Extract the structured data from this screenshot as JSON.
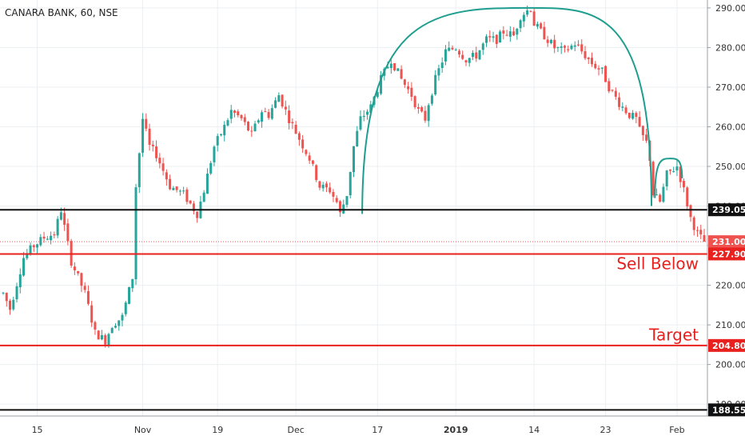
{
  "chart_data": {
    "type": "candlestick",
    "title": "CANARA BANK, 60, NSE",
    "y_axis": {
      "position": "right",
      "ylim": [
        187,
        292
      ],
      "ticks": [
        "190.00",
        "200.00",
        "210.00",
        "220.00",
        "230.00",
        "240.00",
        "250.00",
        "260.00",
        "270.00",
        "280.00",
        "290.00"
      ]
    },
    "x_axis": {
      "ticks": [
        "15",
        "Nov",
        "19",
        "Dec",
        "17",
        "2019",
        "14",
        "23",
        "Feb"
      ],
      "bold_ticks": [
        "2019"
      ]
    },
    "grid": true,
    "colors": {
      "up": "#26a69a",
      "down": "#ef5350",
      "level": "#e8201e",
      "arc": "#1e9e8e"
    },
    "price_path": [
      [
        0,
        218
      ],
      [
        2,
        214
      ],
      [
        6,
        227
      ],
      [
        9,
        230
      ],
      [
        12,
        232
      ],
      [
        15,
        233
      ],
      [
        17,
        239
      ],
      [
        20,
        226
      ],
      [
        24,
        218
      ],
      [
        27,
        208
      ],
      [
        30,
        206
      ],
      [
        32,
        210
      ],
      [
        35,
        212
      ],
      [
        38,
        222
      ],
      [
        39,
        245
      ],
      [
        41,
        262
      ],
      [
        43,
        255
      ],
      [
        45,
        253
      ],
      [
        49,
        245
      ],
      [
        53,
        243
      ],
      [
        57,
        238
      ],
      [
        59,
        244
      ],
      [
        62,
        255
      ],
      [
        65,
        260
      ],
      [
        67,
        264
      ],
      [
        70,
        262
      ],
      [
        73,
        258
      ],
      [
        76,
        264
      ],
      [
        78,
        263
      ],
      [
        81,
        268
      ],
      [
        84,
        262
      ],
      [
        87,
        257
      ],
      [
        90,
        252
      ],
      [
        93,
        245
      ],
      [
        96,
        244
      ],
      [
        98,
        241
      ],
      [
        99,
        238
      ],
      [
        101,
        243
      ],
      [
        103,
        255
      ],
      [
        105,
        262
      ],
      [
        108,
        265
      ],
      [
        111,
        272
      ],
      [
        114,
        277
      ],
      [
        117,
        272
      ],
      [
        120,
        268
      ],
      [
        122,
        264
      ],
      [
        124,
        262
      ],
      [
        125,
        266
      ],
      [
        127,
        272
      ],
      [
        130,
        279
      ],
      [
        133,
        280
      ],
      [
        136,
        277
      ],
      [
        139,
        278
      ],
      [
        142,
        282
      ],
      [
        145,
        282
      ],
      [
        147,
        284
      ],
      [
        150,
        283
      ],
      [
        152,
        288
      ],
      [
        155,
        290
      ],
      [
        156,
        286
      ],
      [
        159,
        283
      ],
      [
        162,
        280
      ],
      [
        165,
        279
      ],
      [
        168,
        281
      ],
      [
        171,
        278
      ],
      [
        173,
        276
      ],
      [
        176,
        274
      ],
      [
        178,
        270
      ],
      [
        181,
        266
      ],
      [
        184,
        263
      ],
      [
        186,
        262
      ],
      [
        187,
        259
      ],
      [
        189,
        256
      ],
      [
        190,
        252
      ],
      [
        191,
        243
      ],
      [
        193,
        241
      ],
      [
        195,
        248
      ],
      [
        198,
        250
      ],
      [
        200,
        244
      ],
      [
        202,
        237
      ],
      [
        204,
        233
      ],
      [
        206,
        231
      ]
    ],
    "levels": [
      {
        "value": 239.05,
        "label": "239.05",
        "color": "#111111",
        "style": "solid",
        "tag_text": "#ffffff",
        "tag_bg": "#111111"
      },
      {
        "value": 231.0,
        "label": "231.00",
        "color": "#ef5350",
        "style": "dotted",
        "tag_text": "#ffffff",
        "tag_bg": "#ef5350"
      },
      {
        "value": 227.9,
        "label": "227.90",
        "color": "#e8201e",
        "style": "solid",
        "tag_text": "#ffffff",
        "tag_bg": "#e8201e"
      },
      {
        "value": 204.8,
        "label": "204.80",
        "color": "#e8201e",
        "style": "solid",
        "tag_text": "#ffffff",
        "tag_bg": "#e8201e"
      },
      {
        "value": 188.55,
        "label": "188.55",
        "color": "#111111",
        "style": "solid",
        "tag_text": "#ffffff",
        "tag_bg": "#111111"
      }
    ],
    "annotations": [
      {
        "text": "Sell Below",
        "y": 225.5,
        "color": "#e8201e"
      },
      {
        "text": "Target",
        "y": 207.5,
        "color": "#e8201e"
      }
    ],
    "rounding_top": {
      "start": [
        105.5,
        238
      ],
      "peak": [
        155,
        290
      ],
      "end": [
        190.5,
        240
      ]
    },
    "minor_rounding": {
      "start": [
        191.5,
        242
      ],
      "peak": [
        196,
        252
      ],
      "end": [
        199.5,
        247
      ]
    }
  }
}
